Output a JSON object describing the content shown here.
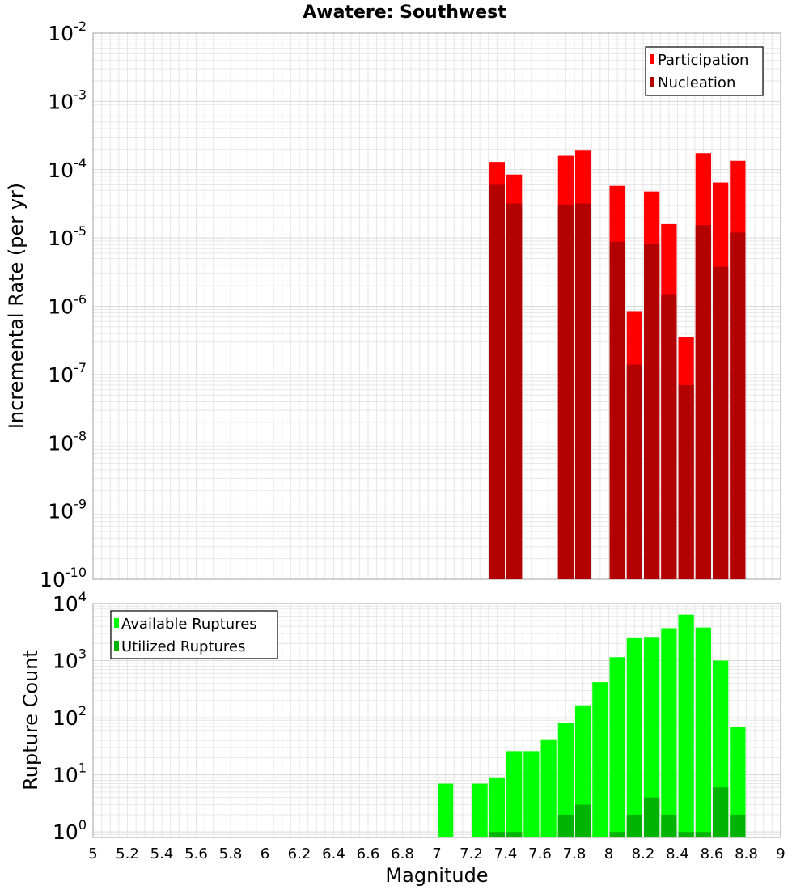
{
  "title": "Awatere: Southwest",
  "xlabel": "Magnitude",
  "colors": {
    "participation": "#ff0000",
    "nucleation": "#b30000",
    "available": "#00ff00",
    "utilized": "#00b300",
    "grid": "#e6e6e6",
    "frame": "#a0a0a0"
  },
  "chart_data": [
    {
      "type": "bar",
      "ylabel": "Incremental Rate (per yr)",
      "yscale": "log",
      "xlim": [
        5,
        9
      ],
      "ylim": [
        1e-10,
        0.01
      ],
      "legend_position": "top-right",
      "yticks": [
        {
          "base": "10",
          "exp": "-10"
        },
        {
          "base": "10",
          "exp": "-9"
        },
        {
          "base": "10",
          "exp": "-8"
        },
        {
          "base": "10",
          "exp": "-7"
        },
        {
          "base": "10",
          "exp": "-6"
        },
        {
          "base": "10",
          "exp": "-5"
        },
        {
          "base": "10",
          "exp": "-4"
        },
        {
          "base": "10",
          "exp": "-3"
        },
        {
          "base": "10",
          "exp": "-2"
        }
      ],
      "x": [
        7.35,
        7.45,
        7.75,
        7.85,
        8.05,
        8.15,
        8.25,
        8.35,
        8.45,
        8.55,
        8.65,
        8.75
      ],
      "series": [
        {
          "name": "Participation",
          "values": [
            0.00013,
            8.5e-05,
            0.00016,
            0.00019,
            5.8e-05,
            8.5e-07,
            4.8e-05,
            1.6e-05,
            3.5e-07,
            0.000175,
            6.5e-05,
            0.000135
          ]
        },
        {
          "name": "Nucleation",
          "values": [
            6e-05,
            3.2e-05,
            3.1e-05,
            3.2e-05,
            8.8e-06,
            1.4e-07,
            8.2e-06,
            1.5e-06,
            7e-08,
            1.55e-05,
            3.8e-06,
            1.2e-05
          ]
        }
      ]
    },
    {
      "type": "bar",
      "ylabel": "Rupture Count",
      "yscale": "log",
      "xlim": [
        5,
        9
      ],
      "ylim": [
        0.8,
        10000
      ],
      "legend_position": "top-left",
      "yticks": [
        {
          "base": "10",
          "exp": "0"
        },
        {
          "base": "10",
          "exp": "1"
        },
        {
          "base": "10",
          "exp": "2"
        },
        {
          "base": "10",
          "exp": "3"
        },
        {
          "base": "10",
          "exp": "4"
        }
      ],
      "xticks": [
        "5",
        "5.2",
        "5.4",
        "5.6",
        "5.8",
        "6",
        "6.2",
        "6.4",
        "6.6",
        "6.8",
        "7",
        "7.2",
        "7.4",
        "7.6",
        "7.8",
        "8",
        "8.2",
        "8.4",
        "8.6",
        "8.8",
        "9"
      ],
      "x": [
        7.05,
        7.25,
        7.35,
        7.45,
        7.55,
        7.65,
        7.75,
        7.85,
        7.95,
        8.05,
        8.15,
        8.25,
        8.35,
        8.45,
        8.55,
        8.65,
        8.75
      ],
      "series": [
        {
          "name": "Available Ruptures",
          "values": [
            7,
            7,
            9,
            26,
            26,
            42,
            80,
            165,
            420,
            1150,
            2550,
            2600,
            3700,
            6400,
            3800,
            1000,
            68
          ]
        },
        {
          "name": "Utilized Ruptures",
          "values": [
            0,
            0,
            1,
            1,
            0,
            0,
            2,
            3,
            0,
            1,
            2,
            4,
            2,
            1,
            1,
            6,
            2
          ]
        }
      ]
    }
  ]
}
